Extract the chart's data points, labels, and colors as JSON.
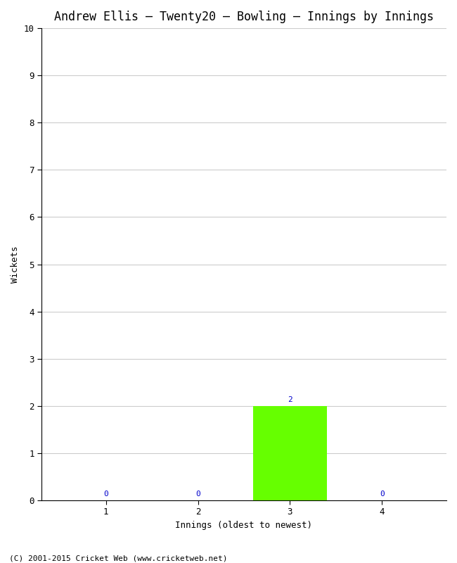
{
  "title": "Andrew Ellis – Twenty20 – Bowling – Innings by Innings",
  "xlabel": "Innings (oldest to newest)",
  "ylabel": "Wickets",
  "categories": [
    1,
    2,
    3,
    4
  ],
  "values": [
    0,
    0,
    2,
    0
  ],
  "bar_color_green": "#66ff00",
  "green_threshold": 1,
  "ylim": [
    0,
    10
  ],
  "yticks": [
    0,
    1,
    2,
    3,
    4,
    5,
    6,
    7,
    8,
    9,
    10
  ],
  "background_color": "#ffffff",
  "label_color": "#0000cc",
  "footer": "(C) 2001-2015 Cricket Web (www.cricketweb.net)",
  "title_fontsize": 12,
  "axis_label_fontsize": 9,
  "tick_label_fontsize": 9,
  "bar_label_fontsize": 8,
  "footer_fontsize": 8,
  "font_family": "monospace",
  "grid_color": "#cccccc",
  "spine_color": "#000000",
  "xlim": [
    0.3,
    4.7
  ]
}
